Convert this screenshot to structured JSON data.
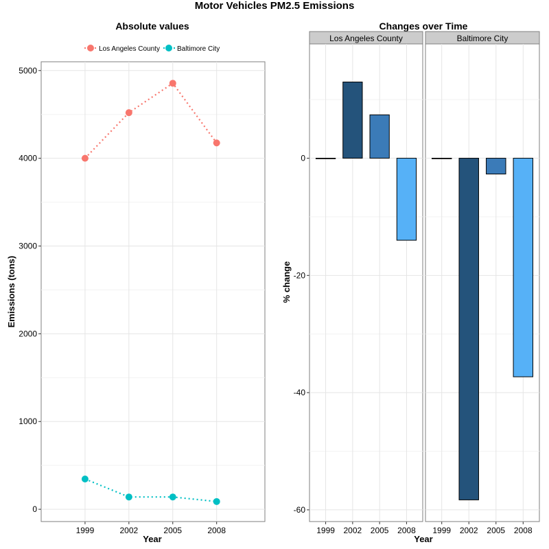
{
  "figure": {
    "title": "Motor Vehicles PM2.5 Emissions"
  },
  "chart_data": [
    {
      "type": "line",
      "title": "Absolute values",
      "xlabel": "Year",
      "ylabel": "Emissions (tons)",
      "categories": [
        "1999",
        "2002",
        "2005",
        "2008"
      ],
      "ylim": [
        -140,
        5100
      ],
      "yticks": [
        0,
        1000,
        2000,
        3000,
        4000,
        5000
      ],
      "grid": true,
      "legend_position": "top",
      "series": [
        {
          "name": "Los Angeles County",
          "color": "#F8766D",
          "values": [
            4000,
            4520,
            4855,
            4175
          ]
        },
        {
          "name": "Baltimore City",
          "color": "#00BFC4",
          "values": [
            345,
            140,
            140,
            88
          ]
        }
      ]
    },
    {
      "type": "bar",
      "title": "Changes over Time",
      "xlabel": "Year",
      "ylabel": "% change",
      "categories": [
        "1999",
        "2002",
        "2005",
        "2008"
      ],
      "ylim": [
        -62,
        19.5
      ],
      "yticks": [
        -60,
        -40,
        -20,
        0
      ],
      "grid": true,
      "bar_colors": [
        "#1F4E79",
        "#24537B",
        "#3B7BB8",
        "#56B1F7"
      ],
      "panels": [
        {
          "name": "Los Angeles County",
          "values": [
            0,
            13,
            7.4,
            -14
          ]
        },
        {
          "name": "Baltimore City",
          "values": [
            0,
            -58.3,
            -2.7,
            -37.3
          ]
        }
      ]
    }
  ]
}
